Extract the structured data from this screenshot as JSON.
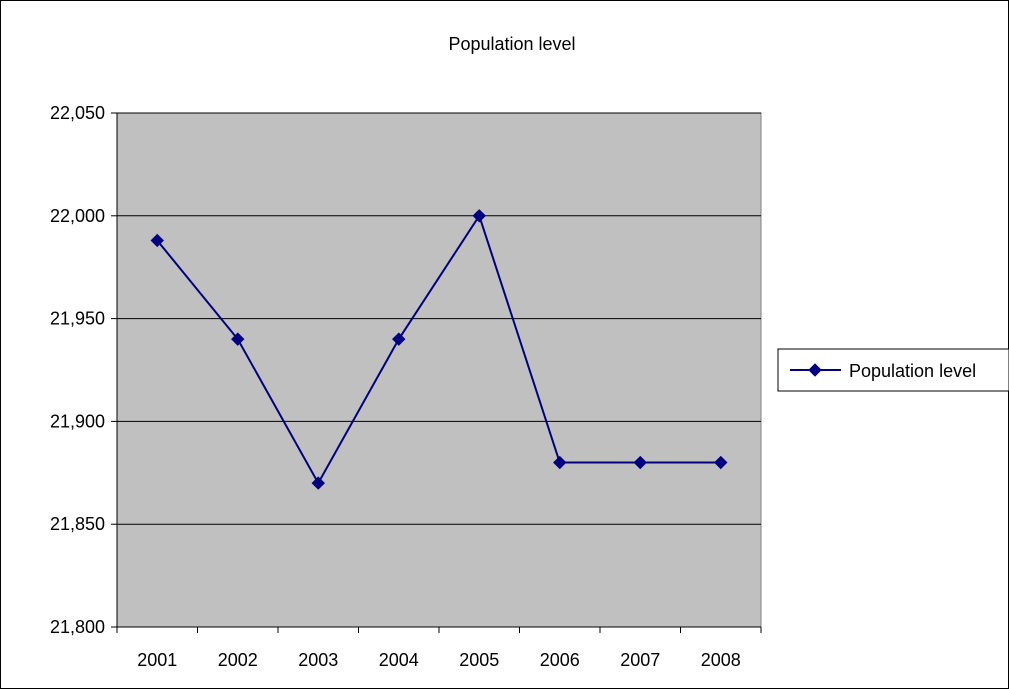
{
  "chart_data": {
    "type": "line",
    "title": "Population level",
    "xlabel": "",
    "ylabel": "",
    "categories": [
      "2001",
      "2002",
      "2003",
      "2004",
      "2005",
      "2006",
      "2007",
      "2008"
    ],
    "series": [
      {
        "name": "Population level",
        "values": [
          21988,
          21940,
          21870,
          21940,
          22000,
          21880,
          21880,
          21880
        ],
        "color": "#000080",
        "marker": "diamond"
      }
    ],
    "ylim": [
      21800,
      22050
    ],
    "yticks": [
      21800,
      21850,
      21900,
      21950,
      22000,
      22050
    ],
    "ytick_labels": [
      "21,800",
      "21,850",
      "21,900",
      "21,950",
      "22,000",
      "22,050"
    ],
    "grid": true,
    "plot_background": "#c0c0c0",
    "legend": "right"
  }
}
